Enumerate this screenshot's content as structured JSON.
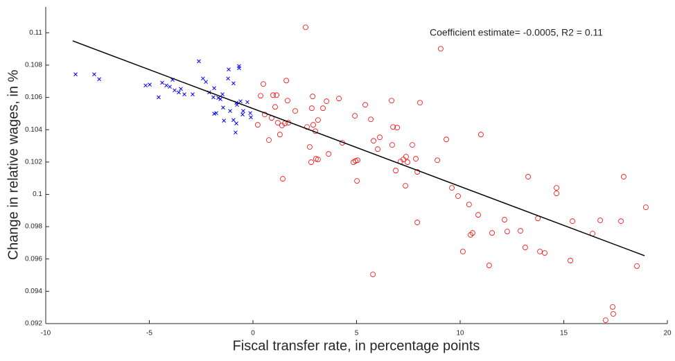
{
  "chart_data": {
    "type": "scatter",
    "annotation": "Coefficient estimate= -0.0005, R2 = 0.11",
    "x_label": "Fiscal transfer rate, in percentage points",
    "y_label": "Change in relative wages, in %",
    "xlim": [
      -10,
      20
    ],
    "xticks": [
      -10,
      -5,
      0,
      5,
      10,
      15,
      20
    ],
    "ylim": [
      0.092,
      0.1116
    ],
    "yticks": [
      0.092,
      0.094,
      0.096,
      0.098,
      0.1,
      0.102,
      0.104,
      0.106,
      0.108,
      0.11
    ],
    "series": [
      {
        "color": "#0000ff",
        "marker": "x",
        "x": [
          -8.56,
          -7.66,
          -7.42,
          -5.18,
          -4.98,
          -4.55,
          -4.38,
          -4.18,
          -4.01,
          -3.88,
          -3.78,
          -3.58,
          -3.48,
          -3.31,
          -2.91,
          -2.61,
          -2.41,
          -2.27,
          -2.11,
          -1.91,
          -1.87,
          -1.77,
          -1.87,
          -1.67,
          -1.57,
          -1.47,
          -1.44,
          -1.4,
          -1.2,
          -1.17,
          -1.1,
          -0.94,
          -0.94,
          -0.84,
          -0.8,
          -0.77,
          -0.67,
          -0.67,
          -0.6,
          -0.5,
          -0.47,
          -0.27,
          -0.13,
          -0.1,
          -0.8
        ],
        "values": [
          0.10743,
          0.10743,
          0.10713,
          0.10674,
          0.10679,
          0.10601,
          0.10691,
          0.10674,
          0.10666,
          0.10709,
          0.10644,
          0.10631,
          0.10653,
          0.10619,
          0.10619,
          0.10824,
          0.10717,
          0.10696,
          0.10631,
          0.10601,
          0.10657,
          0.10503,
          0.10499,
          0.10597,
          0.10589,
          0.10619,
          0.10537,
          0.10456,
          0.10717,
          0.10773,
          0.10516,
          0.10687,
          0.1046,
          0.10383,
          0.10439,
          0.10554,
          0.10794,
          0.10781,
          0.10576,
          0.10494,
          0.10516,
          0.10571,
          0.10503,
          0.10477,
          0.10567
        ]
      },
      {
        "color": "#ff0000",
        "marker": "o",
        "x": [
          0.23,
          0.37,
          0.5,
          0.57,
          0.77,
          0.9,
          0.97,
          1.07,
          1.14,
          1.2,
          1.3,
          1.4,
          1.44,
          1.54,
          1.61,
          1.67,
          1.71,
          2.04,
          2.54,
          2.61,
          2.74,
          2.81,
          2.84,
          2.88,
          2.91,
          3.01,
          3.04,
          3.14,
          3.14,
          3.38,
          3.55,
          3.65,
          4.15,
          4.31,
          4.85,
          4.92,
          4.95,
          5.05,
          5.02,
          5.42,
          5.69,
          5.79,
          5.82,
          6.02,
          6.12,
          6.69,
          6.72,
          6.76,
          6.89,
          6.96,
          7.12,
          7.26,
          7.36,
          7.39,
          7.46,
          7.69,
          7.86,
          7.93,
          7.93,
          8.06,
          8.9,
          9.33,
          9.6,
          9.9,
          9.06,
          10.13,
          10.43,
          10.5,
          10.6,
          10.87,
          11.0,
          11.4,
          11.54,
          12.14,
          12.27,
          12.91,
          13.14,
          13.28,
          13.75,
          13.85,
          14.08,
          14.65,
          14.65,
          15.32,
          15.42,
          16.39,
          16.76,
          17.02,
          17.36,
          17.39,
          17.76,
          17.89,
          18.53,
          18.96
        ],
        "values": [
          0.1043,
          0.1061,
          0.10683,
          0.10494,
          0.10336,
          0.10473,
          0.10614,
          0.10541,
          0.10614,
          0.10443,
          0.1037,
          0.10426,
          0.10096,
          0.10439,
          0.10704,
          0.1058,
          0.10443,
          0.10516,
          0.11034,
          0.10417,
          0.10293,
          0.10199,
          0.10533,
          0.10606,
          0.1043,
          0.10391,
          0.1022,
          0.1046,
          0.10216,
          0.10533,
          0.10576,
          0.1025,
          0.10593,
          0.10319,
          0.10199,
          0.10486,
          0.10207,
          0.10211,
          0.10083,
          0.10554,
          0.10464,
          0.09504,
          0.10331,
          0.1028,
          0.10353,
          0.1058,
          0.10306,
          0.10417,
          0.10147,
          0.10413,
          0.10203,
          0.10216,
          0.10053,
          0.10233,
          0.10199,
          0.10306,
          0.1022,
          0.10139,
          0.09826,
          0.10567,
          0.10211,
          0.1034,
          0.1004,
          0.09989,
          0.10901,
          0.09646,
          0.09937,
          0.09749,
          0.09761,
          0.09873,
          0.1037,
          0.0956,
          0.09761,
          0.09843,
          0.0977,
          0.09774,
          0.09671,
          0.10109,
          0.09851,
          0.09646,
          0.09637,
          0.1004,
          0.10006,
          0.0959,
          0.09834,
          0.09757,
          0.09839,
          0.09221,
          0.09303,
          0.0926,
          0.09834,
          0.10109,
          0.09556,
          0.0992
        ]
      }
    ],
    "fit": {
      "color": "#000000",
      "x": [
        -8.7,
        18.9
      ],
      "values": [
        0.1095,
        0.0962
      ]
    }
  }
}
